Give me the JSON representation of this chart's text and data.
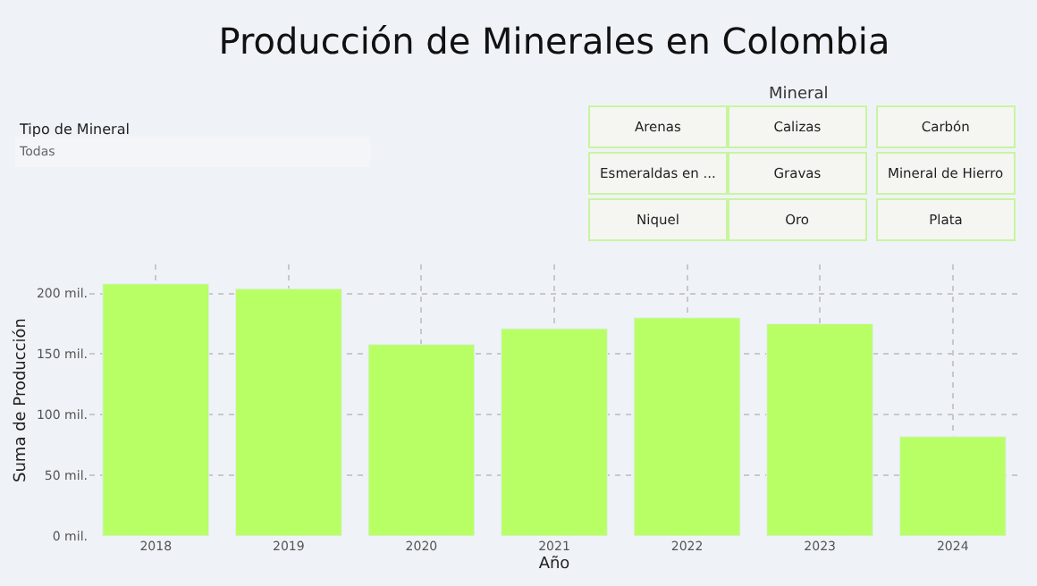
{
  "chart_data": {
    "type": "bar",
    "title": "Producción de Minerales en Colombia",
    "xlabel": "Año",
    "ylabel": "Suma de Producción",
    "categories": [
      "2018",
      "2019",
      "2020",
      "2021",
      "2022",
      "2023",
      "2024"
    ],
    "values": [
      208,
      204,
      158,
      171,
      180,
      175,
      82
    ],
    "color": "#b8ff66",
    "ylim": [
      0,
      224
    ],
    "yticks": [
      {
        "value": 0,
        "label": "0 mil."
      },
      {
        "value": 50,
        "label": "50 mil."
      },
      {
        "value": 100,
        "label": "100 mil."
      },
      {
        "value": 150,
        "label": "150 mil."
      },
      {
        "value": 200,
        "label": "200 mil."
      }
    ],
    "grid": true,
    "legend": false,
    "annotations": [
      "Tipo de Mineral",
      "Todas",
      "Mineral",
      "Arenas",
      "Calizas",
      "Carbón",
      "Esmeraldas en ...",
      "Gravas",
      "Mineral de Hierro",
      "Niquel",
      "Oro",
      "Plata"
    ]
  }
}
